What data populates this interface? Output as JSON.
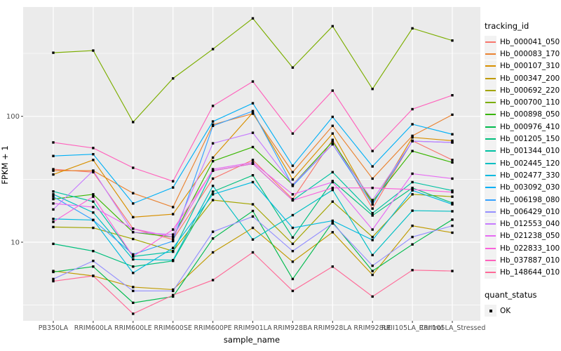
{
  "chart_data": {
    "type": "line",
    "title": "",
    "xlabel": "sample_name",
    "ylabel": "FPKM + 1",
    "x_categories": [
      "PB350LA",
      "RRIM600LA",
      "RRIM600LE",
      "RRIM600SE",
      "RRIM600PE",
      "RRIM901LA",
      "RRIM928BA",
      "RRIM928LA",
      "RRIM928LE",
      "RRII105LA_Control",
      "RRII105LA_Stressed"
    ],
    "y_scale": "log10",
    "ylim": [
      2.4,
      740
    ],
    "y_major_ticks": [
      10,
      100
    ],
    "y_minor_gridlines": [
      3.162,
      31.62,
      316.2
    ],
    "grid": true,
    "legend_position": "right",
    "panel_bg": "#EBEBEB",
    "grid_color": "#FFFFFF",
    "tick_color": "#333333",
    "tick_label_color": "#4D4D4D",
    "point": {
      "shape": "square",
      "color": "#000000",
      "size": 3.4
    },
    "legend_title": "tracking_id",
    "quant_legend": {
      "title": "quant_status",
      "items": [
        {
          "label": "OK",
          "color": "#000000",
          "shape": "square"
        }
      ]
    },
    "series": [
      {
        "name": "Hb_000041_050",
        "color": "#F8766D",
        "values": [
          38,
          36,
          12.8,
          10.5,
          32,
          45,
          22,
          65,
          18.5,
          64,
          45
        ]
      },
      {
        "name": "Hb_000083_170",
        "color": "#EA8331",
        "values": [
          37,
          37,
          24.5,
          19,
          86,
          105,
          36,
          84,
          32,
          70,
          103
        ]
      },
      {
        "name": "Hb_000107_310",
        "color": "#D89000",
        "values": [
          34.5,
          45,
          15.8,
          16.7,
          47,
          107,
          31.5,
          73,
          20,
          68,
          64
        ]
      },
      {
        "name": "Hb_000347_200",
        "color": "#C09B00",
        "values": [
          5.9,
          5.4,
          4.4,
          4.2,
          8.3,
          13,
          7,
          12,
          5.5,
          13.5,
          11.9
        ]
      },
      {
        "name": "Hb_000692_220",
        "color": "#A3A500",
        "values": [
          13.2,
          13,
          10.6,
          8.5,
          21.6,
          20,
          9.7,
          21,
          11,
          24,
          23
        ]
      },
      {
        "name": "Hb_000700_110",
        "color": "#7CAE00",
        "values": [
          320,
          333,
          90,
          200,
          342,
          600,
          244,
          520,
          165,
          500,
          400
        ]
      },
      {
        "name": "Hb_000898_050",
        "color": "#39B600",
        "values": [
          22,
          24,
          12,
          11,
          44,
          57,
          28.6,
          63,
          21,
          53,
          43
        ]
      },
      {
        "name": "Hb_000976_410",
        "color": "#00BB4E",
        "values": [
          5.8,
          6.4,
          3.3,
          3.7,
          10.7,
          17.7,
          5.1,
          14.4,
          5.9,
          9.6,
          15.1
        ]
      },
      {
        "name": "Hb_001205_150",
        "color": "#00BF7D",
        "values": [
          9.7,
          8.5,
          6.4,
          7.1,
          25.2,
          34,
          10.9,
          30.6,
          16.3,
          27,
          20.5
        ]
      },
      {
        "name": "Hb_001344_010",
        "color": "#00C1A3",
        "values": [
          25.3,
          21,
          7.7,
          8.4,
          37,
          42,
          21.5,
          36,
          17,
          30,
          25.7
        ]
      },
      {
        "name": "Hb_002445_120",
        "color": "#00BFC4",
        "values": [
          24,
          17.2,
          7.3,
          7.2,
          28,
          10.5,
          16.4,
          26,
          7.9,
          17.8,
          17.6
        ]
      },
      {
        "name": "Hb_002477_330",
        "color": "#00BAE0",
        "values": [
          15.3,
          15,
          5.7,
          9,
          24,
          30,
          13,
          14.8,
          10.4,
          25.8,
          20
        ]
      },
      {
        "name": "Hb_003092_030",
        "color": "#00B0F6",
        "values": [
          48.4,
          50,
          20.3,
          27.2,
          91,
          127,
          40.5,
          99,
          40,
          86.5,
          72
        ]
      },
      {
        "name": "Hb_006198_080",
        "color": "#35A2FF",
        "values": [
          23,
          15,
          8,
          10.2,
          84,
          110,
          28,
          60,
          20,
          63.5,
          62
        ]
      },
      {
        "name": "Hb_006429_010",
        "color": "#9590FF",
        "values": [
          5.1,
          7.1,
          4.1,
          4.1,
          12.1,
          16,
          8.5,
          14.1,
          6.5,
          11,
          13.5
        ]
      },
      {
        "name": "Hb_012553_040",
        "color": "#C77CFF",
        "values": [
          18.2,
          37,
          12,
          11.5,
          61,
          74,
          28.6,
          60,
          21.6,
          63.5,
          62
        ]
      },
      {
        "name": "Hb_021238_050",
        "color": "#E76BF3",
        "values": [
          20.3,
          19,
          12.8,
          11,
          38,
          43,
          24,
          30,
          12.6,
          35,
          32
        ]
      },
      {
        "name": "Hb_022833_100",
        "color": "#FA62DB",
        "values": [
          14.5,
          23,
          7.7,
          12.6,
          37,
          42,
          21.5,
          27,
          27,
          26.2,
          25
        ]
      },
      {
        "name": "Hb_037887_010",
        "color": "#FF62BC",
        "values": [
          62,
          56,
          39,
          30.5,
          121,
          189,
          73,
          160,
          53,
          114,
          147
        ]
      },
      {
        "name": "Hb_148644_010",
        "color": "#FF6A98",
        "values": [
          4.9,
          5.4,
          2.7,
          3.8,
          5.0,
          8.3,
          4.1,
          6.4,
          3.7,
          6.0,
          5.9
        ]
      }
    ]
  }
}
